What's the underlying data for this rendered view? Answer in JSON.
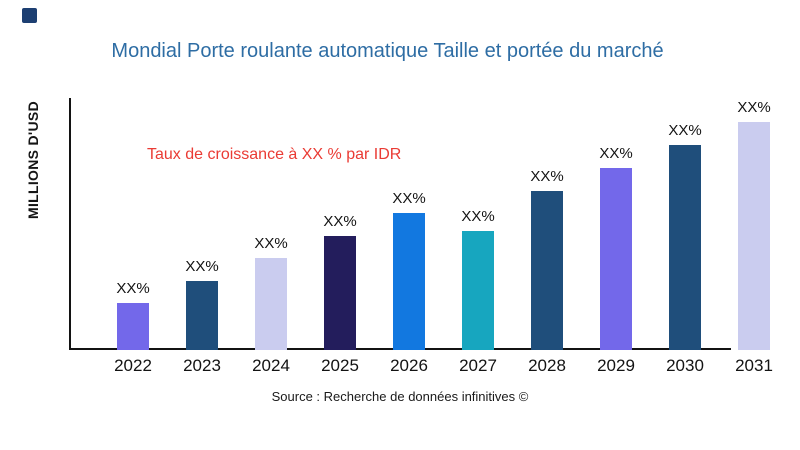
{
  "page": {
    "background": "#ffffff"
  },
  "logo": {
    "color": "#1D3F72"
  },
  "title": {
    "text": "Mondial Porte roulante automatique Taille et portée du marché",
    "color": "#2E6DA4"
  },
  "annotation": {
    "text": "Taux de croissance à XX % par IDR",
    "color": "#EA3B34"
  },
  "source": {
    "text": "Source : Recherche de données infinitives ©"
  },
  "chart_data": {
    "type": "bar",
    "title": "Mondial Porte roulante automatique Taille et portée du marché",
    "xlabel": "",
    "ylabel": "MILLIONS D'USD",
    "categories": [
      "2022",
      "2023",
      "2024",
      "2025",
      "2026",
      "2027",
      "2028",
      "2029",
      "2030",
      "2031"
    ],
    "value_labels": [
      "XX%",
      "XX%",
      "XX%",
      "XX%",
      "XX%",
      "XX%",
      "XX%",
      "XX%",
      "XX%",
      "XX%"
    ],
    "values_relative": [
      47,
      69,
      92,
      114,
      137,
      119,
      159,
      182,
      205,
      228
    ],
    "values_note": "Numeric values are masked as XX% placeholders in the figure; values_relative are bar heights in px proportional to depicted sizes",
    "bar_colors": [
      "#7368EA",
      "#1F4E7B",
      "#CACCEF",
      "#231D5C",
      "#1278E0",
      "#17A6BF",
      "#1F4E7B",
      "#7368EA",
      "#1F4E7B",
      "#CACCEF"
    ],
    "axis_color": "#131313",
    "grid": false,
    "legend": false,
    "y_ticks": []
  }
}
